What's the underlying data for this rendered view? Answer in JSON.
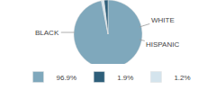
{
  "chart_data": {
    "type": "pie",
    "categories": [
      "96.9%",
      "1.9%",
      "1.2%"
    ],
    "values": [
      96.9,
      1.9,
      1.2
    ],
    "colors": [
      "#7fa8bc",
      "#2e5f7a",
      "#d4e4ed"
    ],
    "annotations": [
      "BLACK",
      "WHITE",
      "HISPANIC"
    ],
    "legend": "bottom"
  }
}
